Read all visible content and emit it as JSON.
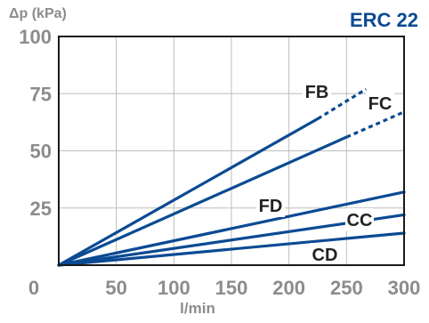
{
  "colors": {
    "series": "#0b4a93",
    "grid": "#bdbdbd",
    "frame": "#1a1a1a",
    "tick": "#8c8c8c",
    "title": "#0b4a93"
  },
  "chart_data": {
    "type": "line",
    "title": "ERC 22",
    "ylabel": "Δp (kPa)",
    "xlabel": "l/min",
    "xlim": [
      0,
      300
    ],
    "ylim": [
      0,
      100
    ],
    "x_ticks": [
      "0",
      "50",
      "100",
      "150",
      "200",
      "250",
      "300"
    ],
    "y_ticks": [
      "0",
      "25",
      "50",
      "75",
      "100"
    ],
    "grid": true,
    "series": [
      {
        "name": "FB",
        "solid": [
          [
            0,
            0
          ],
          [
            225,
            64
          ]
        ],
        "dashed": [
          [
            225,
            64
          ],
          [
            267,
            77
          ]
        ]
      },
      {
        "name": "FC",
        "solid": [
          [
            0,
            0
          ],
          [
            250,
            56
          ]
        ],
        "dashed": [
          [
            250,
            56
          ],
          [
            300,
            67
          ]
        ]
      },
      {
        "name": "FD",
        "solid": [
          [
            0,
            0
          ],
          [
            300,
            32
          ]
        ]
      },
      {
        "name": "CC",
        "solid": [
          [
            0,
            0
          ],
          [
            300,
            22
          ]
        ]
      },
      {
        "name": "CD",
        "solid": [
          [
            0,
            0
          ],
          [
            300,
            14
          ]
        ]
      }
    ]
  }
}
